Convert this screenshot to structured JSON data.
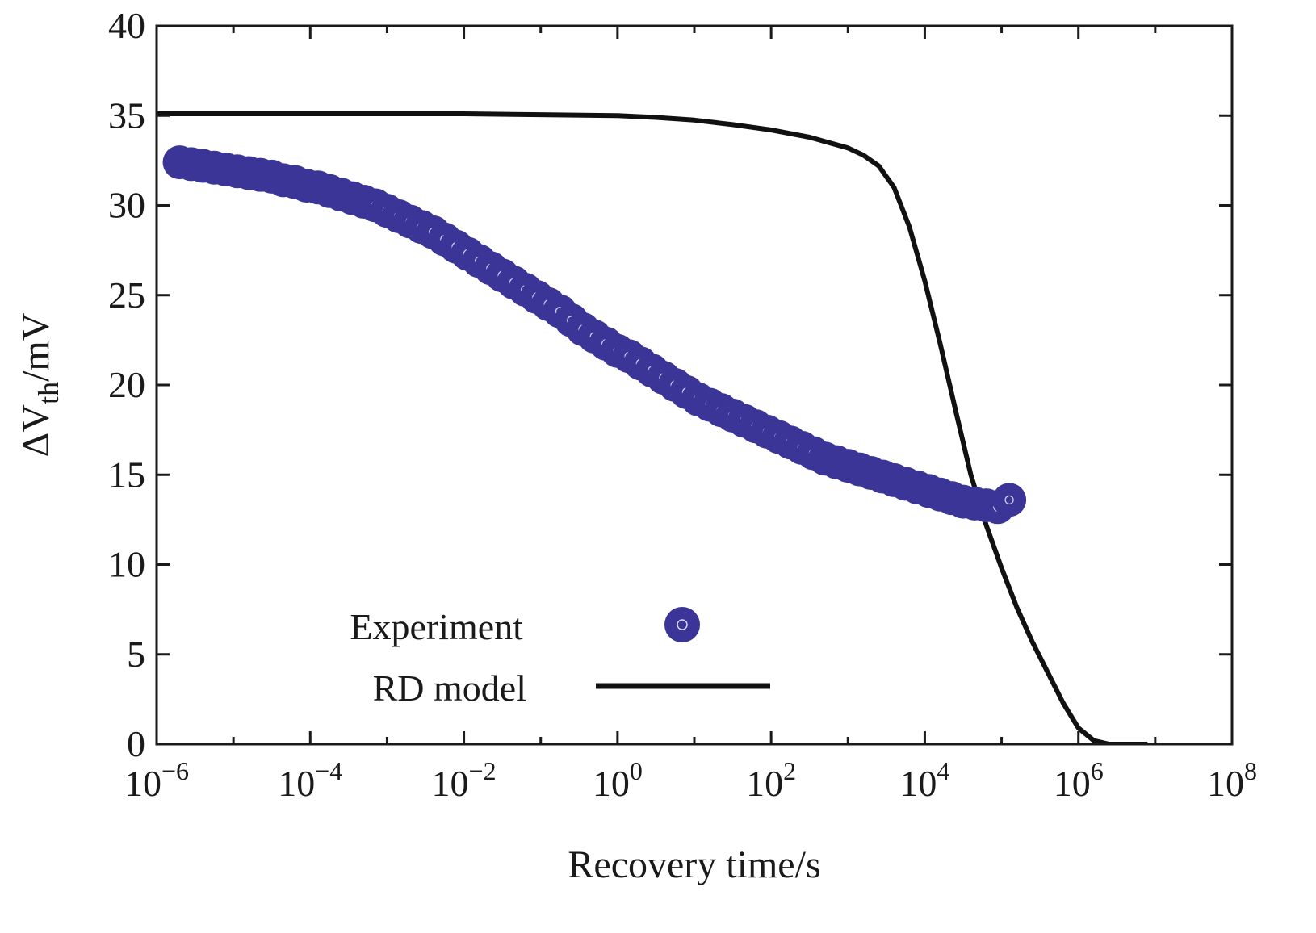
{
  "chart_data": {
    "type": "scatter+line",
    "title": "",
    "xlabel": "Recovery time/s",
    "ylabel": {
      "prefix": "ΔV",
      "sub": "th",
      "suffix": "/mV"
    },
    "x_scale": "log",
    "xlim_exp": [
      -6,
      8
    ],
    "ylim": [
      0,
      40
    ],
    "grid": false,
    "x_ticks": [
      {
        "base": "10",
        "exp": "−6",
        "value": -6
      },
      {
        "base": "10",
        "exp": "−4",
        "value": -4
      },
      {
        "base": "10",
        "exp": "−2",
        "value": -2
      },
      {
        "base": "10",
        "exp": "0",
        "value": 0
      },
      {
        "base": "10",
        "exp": "2",
        "value": 2
      },
      {
        "base": "10",
        "exp": "4",
        "value": 4
      },
      {
        "base": "10",
        "exp": "6",
        "value": 6
      },
      {
        "base": "10",
        "exp": "8",
        "value": 8
      }
    ],
    "y_ticks": [
      "0",
      "5",
      "10",
      "15",
      "20",
      "25",
      "30",
      "35",
      "40"
    ],
    "legend": {
      "position": "bottom-center",
      "entries": [
        {
          "label": "Experiment",
          "marker": "circle"
        },
        {
          "label": "RD model",
          "marker": "line"
        }
      ]
    },
    "colors": {
      "experiment": "#3a3597",
      "model": "#111111",
      "axis": "#1a1a1a"
    },
    "series": [
      {
        "name": "Experiment",
        "kind": "scatter",
        "log10_x": [
          -5.7,
          -5.55,
          -5.4,
          -5.25,
          -5.1,
          -4.95,
          -4.8,
          -4.65,
          -4.5,
          -4.35,
          -4.2,
          -4.05,
          -3.9,
          -3.75,
          -3.6,
          -3.45,
          -3.3,
          -3.15,
          -3.0,
          -2.85,
          -2.7,
          -2.55,
          -2.4,
          -2.25,
          -2.1,
          -1.95,
          -1.8,
          -1.65,
          -1.5,
          -1.35,
          -1.2,
          -1.05,
          -0.9,
          -0.75,
          -0.6,
          -0.45,
          -0.3,
          -0.15,
          0.0,
          0.15,
          0.3,
          0.45,
          0.6,
          0.75,
          0.9,
          1.05,
          1.2,
          1.35,
          1.5,
          1.65,
          1.8,
          1.95,
          2.1,
          2.25,
          2.4,
          2.55,
          2.7,
          2.85,
          3.0,
          3.15,
          3.3,
          3.45,
          3.6,
          3.75,
          3.9,
          4.05,
          4.2,
          4.35,
          4.5,
          4.65,
          4.8,
          4.95,
          5.1
        ],
        "y": [
          32.4,
          32.3,
          32.2,
          32.1,
          32.0,
          31.9,
          31.8,
          31.7,
          31.6,
          31.4,
          31.3,
          31.1,
          31.0,
          30.8,
          30.6,
          30.4,
          30.2,
          30.0,
          29.7,
          29.4,
          29.1,
          28.8,
          28.5,
          28.1,
          27.7,
          27.3,
          26.9,
          26.5,
          26.1,
          25.7,
          25.3,
          24.9,
          24.5,
          24.1,
          23.6,
          23.1,
          22.7,
          22.3,
          21.9,
          21.6,
          21.2,
          20.8,
          20.4,
          20.0,
          19.6,
          19.2,
          18.9,
          18.6,
          18.3,
          18.0,
          17.7,
          17.4,
          17.1,
          16.8,
          16.5,
          16.2,
          15.9,
          15.7,
          15.5,
          15.3,
          15.1,
          14.9,
          14.7,
          14.5,
          14.3,
          14.1,
          13.9,
          13.7,
          13.5,
          13.4,
          13.3,
          13.2,
          13.6
        ]
      },
      {
        "name": "RD model",
        "kind": "line",
        "log10_x": [
          -6,
          -5,
          -4,
          -3,
          -2,
          -1,
          0,
          0.5,
          1.0,
          1.5,
          2.0,
          2.5,
          3.0,
          3.2,
          3.4,
          3.6,
          3.8,
          4.0,
          4.2,
          4.4,
          4.6,
          4.8,
          5.0,
          5.2,
          5.4,
          5.6,
          5.8,
          6.0,
          6.2,
          6.4,
          6.6,
          6.7,
          6.8,
          6.85,
          6.9
        ],
        "y": [
          35.1,
          35.1,
          35.1,
          35.1,
          35.1,
          35.05,
          35.0,
          34.9,
          34.75,
          34.5,
          34.2,
          33.8,
          33.2,
          32.8,
          32.2,
          31.0,
          28.8,
          25.8,
          22.3,
          18.6,
          15.0,
          12.2,
          9.8,
          7.6,
          5.7,
          4.0,
          2.3,
          0.9,
          0.2,
          0.0,
          0.0,
          0.0,
          0.0,
          0.0,
          0.0
        ]
      }
    ]
  }
}
